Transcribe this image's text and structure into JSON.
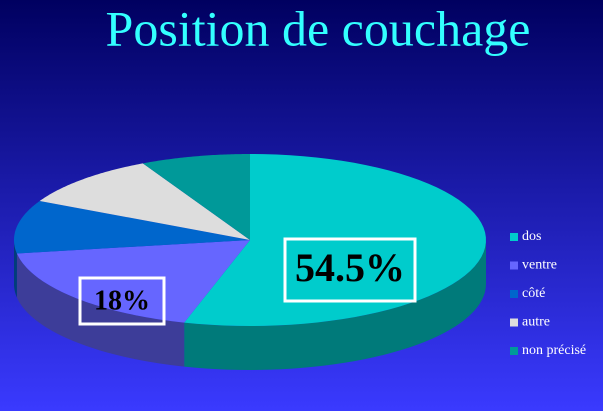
{
  "chart_data": {
    "type": "pie3d",
    "title": "Position de couchage",
    "categories": [
      "dos",
      "ventre",
      "côté",
      "autre",
      "non précisé"
    ],
    "values": [
      54.5,
      18,
      10,
      10,
      7.5
    ],
    "value_labels": [
      "54.5%",
      "18%",
      null,
      null,
      null
    ],
    "colors": [
      "#00cccc",
      "#6666ff",
      "#0066cc",
      "#dddddd",
      "#009999"
    ],
    "legend": "right"
  }
}
